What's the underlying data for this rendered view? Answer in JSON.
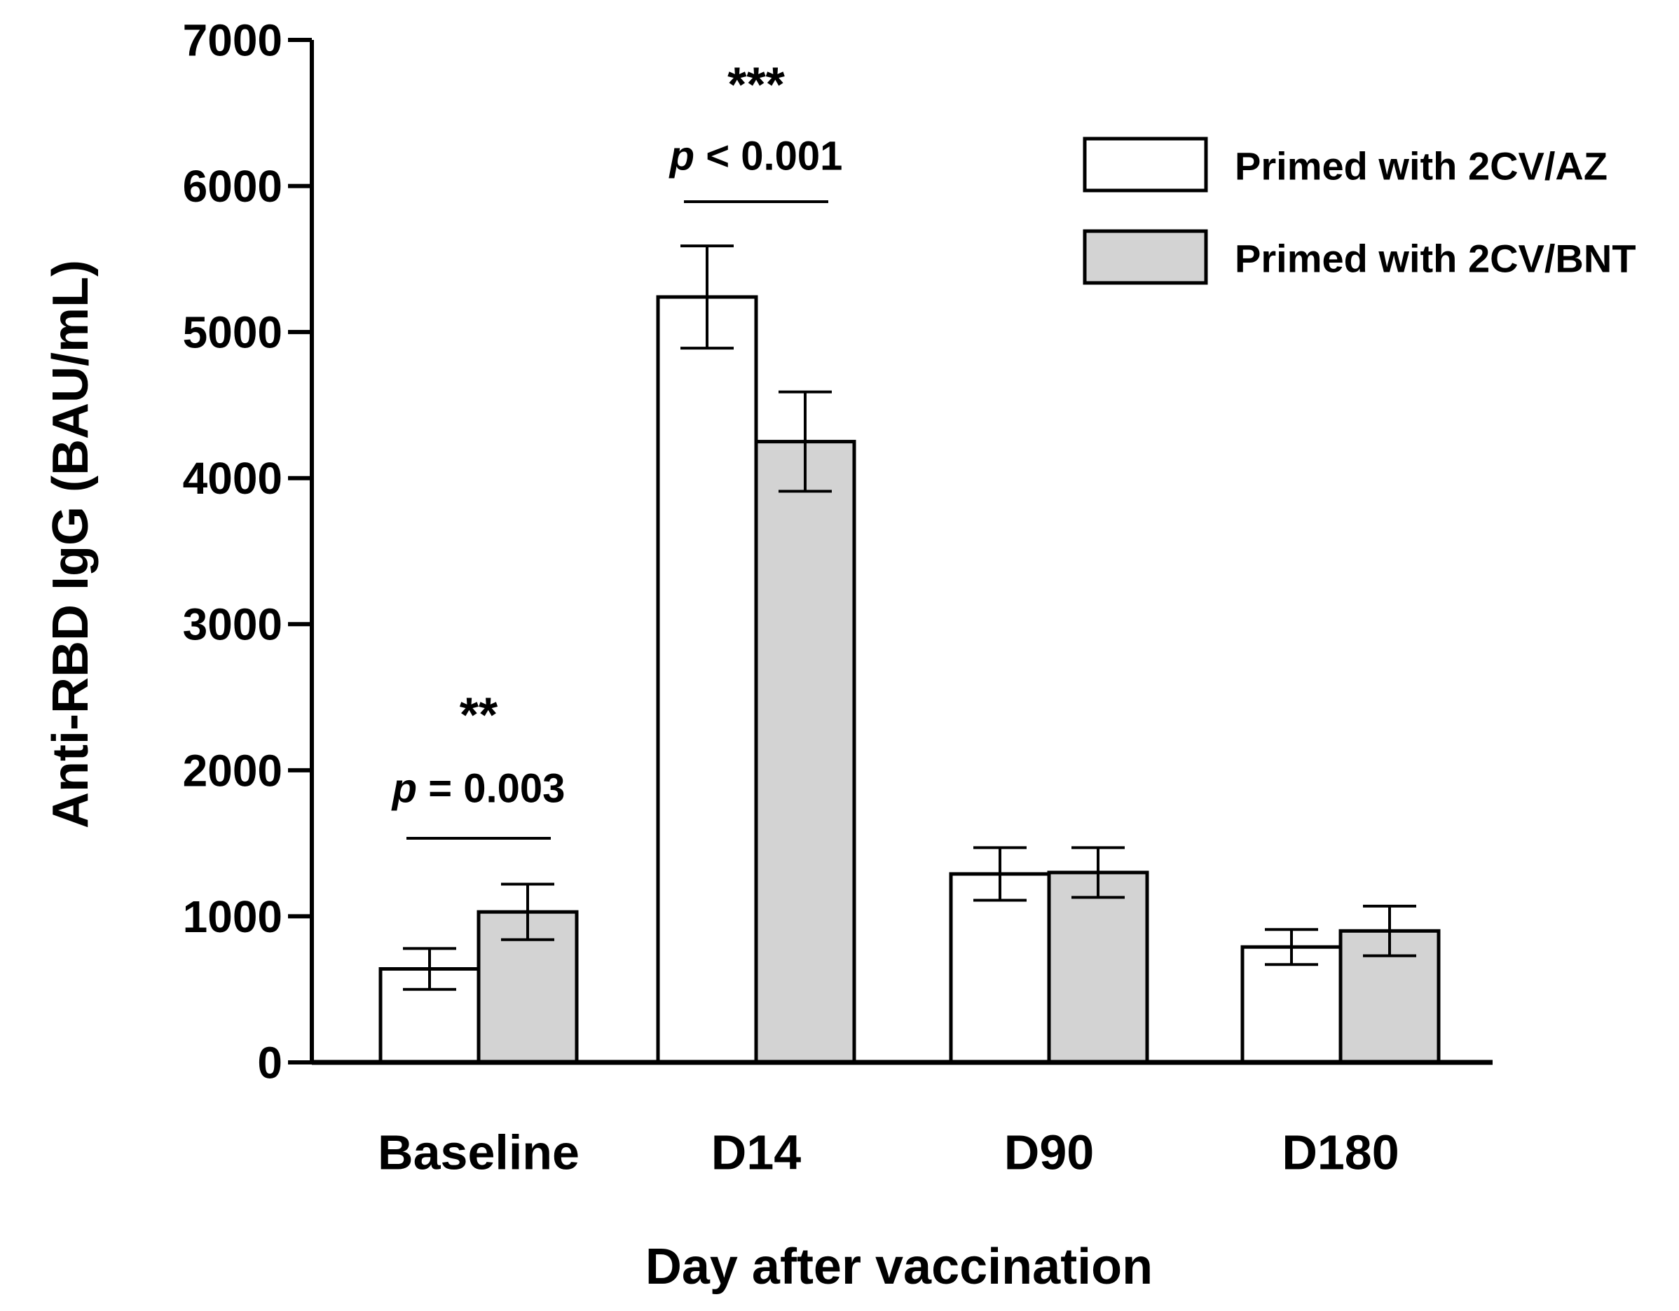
{
  "chart_data": {
    "type": "bar",
    "title": "",
    "xlabel": "Day after vaccination",
    "ylabel": "Anti-RBD IgG (BAU/mL)",
    "ylim": [
      0,
      7000
    ],
    "yticks": [
      0,
      1000,
      2000,
      3000,
      4000,
      5000,
      6000,
      7000
    ],
    "categories": [
      "Baseline",
      "D14",
      "D90",
      "D180"
    ],
    "series": [
      {
        "name": "Primed with 2CV/AZ",
        "color": "#ffffff",
        "values": [
          640,
          5240,
          1290,
          790
        ],
        "error": [
          140,
          350,
          180,
          120
        ]
      },
      {
        "name": "Primed with 2CV/BNT",
        "color": "#d3d3d3",
        "values": [
          1030,
          4250,
          1300,
          900
        ],
        "error": [
          190,
          340,
          170,
          170
        ]
      }
    ],
    "annotations": [
      {
        "category": "Baseline",
        "stars": "**",
        "p_prefix": "p",
        "p_text": " = 0.003"
      },
      {
        "category": "D14",
        "stars": "***",
        "p_prefix": "p",
        "p_text": " < 0.001"
      }
    ],
    "legend_position": "top-right",
    "grid": false
  }
}
